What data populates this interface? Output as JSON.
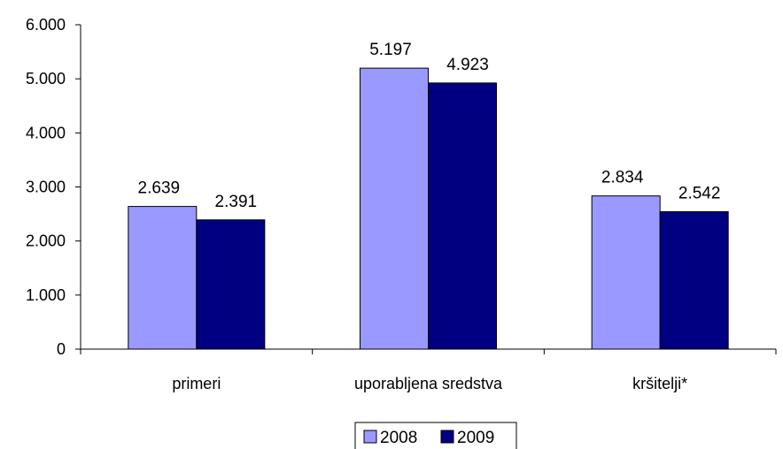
{
  "chart_data": {
    "type": "bar",
    "categories": [
      "primeri",
      "uporabljena sredstva",
      "kršitelji*"
    ],
    "series": [
      {
        "name": "2008",
        "values": [
          2639,
          5197,
          2834
        ],
        "labels": [
          "2.639",
          "5.197",
          "2.834"
        ],
        "color": "#9999ff"
      },
      {
        "name": "2009",
        "values": [
          2391,
          4923,
          2542
        ],
        "labels": [
          "2.391",
          "4.923",
          "2.542"
        ],
        "color": "#000080"
      }
    ],
    "ylim": [
      0,
      6000
    ],
    "yticks": [
      0,
      1000,
      2000,
      3000,
      4000,
      5000,
      6000
    ],
    "ytick_labels": [
      "0",
      "1.000",
      "2.000",
      "3.000",
      "4.000",
      "5.000",
      "6.000"
    ],
    "grid": false,
    "legend": "bottom"
  }
}
